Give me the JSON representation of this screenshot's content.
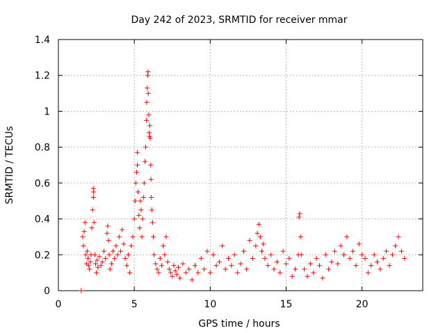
{
  "chart_data": {
    "type": "scatter",
    "title": "Day 242 of 2023, SRMTID for receiver mmar",
    "xlabel": "GPS time / hours",
    "ylabel": "SRMTID / TECUs",
    "xlim": [
      0,
      24
    ],
    "ylim": [
      0,
      1.4
    ],
    "xticks": [
      0,
      5,
      10,
      15,
      20
    ],
    "xtick_labels": [
      "0",
      "5",
      "10",
      "15",
      "20"
    ],
    "yticks": [
      0,
      0.2,
      0.4,
      0.6,
      0.8,
      1.0,
      1.2,
      1.4
    ],
    "ytick_labels": [
      "0",
      "0.2",
      "0.4",
      "0.6",
      "0.8",
      "1",
      "1.2",
      "1.4"
    ],
    "grid": true,
    "marker": "+",
    "color": "#ff0000",
    "series": [
      {
        "name": "SRMTID",
        "x": [
          1.5,
          1.6,
          1.65,
          1.7,
          1.75,
          1.8,
          1.85,
          1.9,
          1.95,
          2.0,
          2.05,
          2.1,
          2.15,
          2.2,
          2.25,
          2.3,
          2.3,
          2.32,
          2.35,
          2.4,
          2.45,
          2.5,
          2.55,
          2.6,
          2.7,
          2.8,
          2.9,
          3.0,
          3.1,
          3.2,
          3.25,
          3.3,
          3.35,
          3.4,
          3.5,
          3.6,
          3.7,
          3.8,
          3.9,
          4.0,
          4.1,
          4.2,
          4.3,
          4.4,
          4.5,
          4.6,
          4.7,
          4.8,
          4.9,
          5.0,
          5.05,
          5.1,
          5.15,
          5.2,
          5.2,
          5.25,
          5.3,
          5.35,
          5.4,
          5.45,
          5.5,
          5.55,
          5.6,
          5.65,
          5.7,
          5.75,
          5.8,
          5.82,
          5.85,
          5.88,
          5.9,
          5.92,
          5.95,
          5.98,
          6.0,
          6.02,
          6.05,
          6.08,
          6.1,
          6.12,
          6.15,
          6.2,
          6.25,
          6.3,
          6.4,
          6.5,
          6.6,
          6.7,
          6.8,
          6.9,
          7.0,
          7.1,
          7.2,
          7.3,
          7.4,
          7.5,
          7.6,
          7.7,
          7.8,
          7.9,
          8.0,
          8.2,
          8.4,
          8.6,
          8.8,
          9.0,
          9.2,
          9.4,
          9.6,
          9.8,
          10.0,
          10.2,
          10.4,
          10.6,
          10.8,
          11.0,
          11.2,
          11.4,
          11.6,
          11.8,
          12.0,
          12.2,
          12.4,
          12.6,
          12.8,
          13.0,
          13.1,
          13.2,
          13.3,
          13.4,
          13.5,
          13.6,
          13.8,
          14.0,
          14.2,
          14.4,
          14.6,
          14.8,
          15.0,
          15.2,
          15.4,
          15.6,
          15.8,
          15.85,
          15.9,
          15.95,
          16.0,
          16.2,
          16.4,
          16.6,
          16.8,
          17.0,
          17.2,
          17.4,
          17.6,
          17.8,
          18.0,
          18.2,
          18.4,
          18.6,
          18.8,
          19.0,
          19.2,
          19.4,
          19.6,
          19.8,
          20.0,
          20.2,
          20.4,
          20.6,
          20.8,
          21.0,
          21.2,
          21.4,
          21.6,
          21.8,
          22.0,
          22.2,
          22.4,
          22.6,
          22.8
        ],
        "y": [
          0.0,
          0.3,
          0.25,
          0.33,
          0.38,
          0.2,
          0.15,
          0.22,
          0.18,
          0.14,
          0.12,
          0.16,
          0.2,
          0.35,
          0.45,
          0.52,
          0.57,
          0.55,
          0.38,
          0.2,
          0.15,
          0.1,
          0.17,
          0.13,
          0.19,
          0.14,
          0.16,
          0.22,
          0.18,
          0.32,
          0.36,
          0.28,
          0.2,
          0.12,
          0.15,
          0.22,
          0.18,
          0.25,
          0.2,
          0.3,
          0.22,
          0.34,
          0.26,
          0.18,
          0.14,
          0.2,
          0.1,
          0.25,
          0.3,
          0.4,
          0.5,
          0.6,
          0.66,
          0.7,
          0.77,
          0.55,
          0.42,
          0.35,
          0.5,
          0.45,
          0.3,
          0.4,
          0.52,
          0.6,
          0.72,
          0.8,
          0.95,
          1.05,
          1.13,
          1.2,
          1.22,
          1.1,
          0.98,
          0.88,
          0.86,
          0.92,
          0.85,
          0.7,
          0.62,
          0.52,
          0.45,
          0.38,
          0.3,
          0.2,
          0.15,
          0.12,
          0.1,
          0.18,
          0.14,
          0.25,
          0.2,
          0.3,
          0.16,
          0.12,
          0.1,
          0.08,
          0.14,
          0.11,
          0.09,
          0.13,
          0.07,
          0.15,
          0.1,
          0.12,
          0.06,
          0.14,
          0.1,
          0.18,
          0.12,
          0.22,
          0.1,
          0.2,
          0.14,
          0.16,
          0.25,
          0.12,
          0.18,
          0.14,
          0.2,
          0.1,
          0.15,
          0.22,
          0.12,
          0.28,
          0.18,
          0.25,
          0.32,
          0.37,
          0.3,
          0.22,
          0.26,
          0.18,
          0.14,
          0.2,
          0.12,
          0.16,
          0.1,
          0.22,
          0.15,
          0.18,
          0.08,
          0.12,
          0.2,
          0.41,
          0.43,
          0.3,
          0.2,
          0.12,
          0.08,
          0.15,
          0.1,
          0.18,
          0.14,
          0.07,
          0.2,
          0.12,
          0.16,
          0.22,
          0.15,
          0.25,
          0.2,
          0.3,
          0.18,
          0.22,
          0.14,
          0.26,
          0.2,
          0.18,
          0.1,
          0.14,
          0.2,
          0.16,
          0.12,
          0.18,
          0.22,
          0.14,
          0.2,
          0.25,
          0.3,
          0.22,
          0.18
        ]
      }
    ]
  }
}
